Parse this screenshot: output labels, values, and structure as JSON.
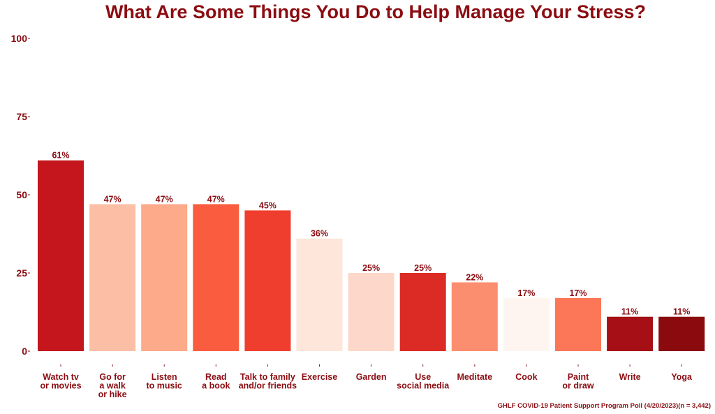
{
  "chart_data": {
    "type": "bar",
    "title": "What Are Some Things You Do to Help Manage Your Stress?",
    "caption": "GHLF COVID-19 Patient Support Program Poll (4/20/2023)(n = 3,442)",
    "categories": [
      [
        "Watch tv",
        "or movies"
      ],
      [
        "Go for",
        "a walk",
        "or hike"
      ],
      [
        "Listen",
        "to music"
      ],
      [
        "Read",
        "a book"
      ],
      [
        "Talk to family",
        "and/or friends"
      ],
      [
        "Exercise"
      ],
      [
        "Garden"
      ],
      [
        "Use",
        "social media"
      ],
      [
        "Meditate"
      ],
      [
        "Cook"
      ],
      [
        "Paint",
        "or draw"
      ],
      [
        "Write"
      ],
      [
        "Yoga"
      ]
    ],
    "values": [
      61,
      47,
      47,
      47,
      45,
      36,
      25,
      25,
      22,
      17,
      17,
      11,
      11
    ],
    "value_labels": [
      "61%",
      "47%",
      "47%",
      "47%",
      "45%",
      "36%",
      "25%",
      "25%",
      "22%",
      "17%",
      "17%",
      "11%",
      "11%"
    ],
    "colors": [
      "#c4161c",
      "#fcbfa6",
      "#fcaa8a",
      "#f95c3f",
      "#ef3e2e",
      "#fee6da",
      "#fdd7c9",
      "#dc2a25",
      "#fc8e70",
      "#fff5f0",
      "#fb7757",
      "#a50f15",
      "#8b0a0e"
    ],
    "ylim": [
      0,
      100
    ],
    "yticks": [
      0,
      25,
      50,
      75,
      100
    ],
    "xlabel": "",
    "ylabel": "",
    "grid": false,
    "legend": "none"
  }
}
